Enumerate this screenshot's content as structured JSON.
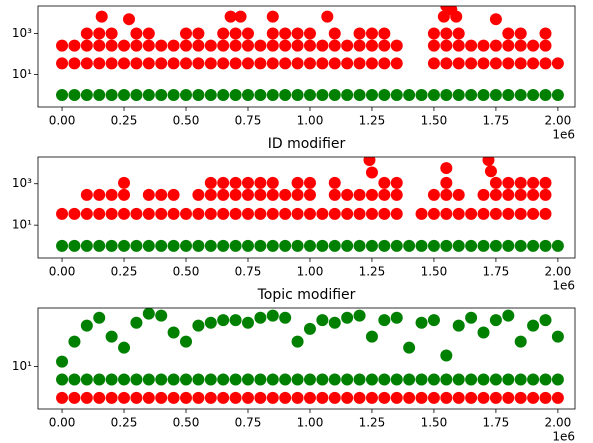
{
  "chart_data": [
    {
      "type": "scatter",
      "yscale": "log",
      "xlim": [
        -97000,
        2069000
      ],
      "ylim": [
        0.26,
        22000
      ],
      "xticks": [
        {
          "value": 0,
          "label": "0.00"
        },
        {
          "value": 250000,
          "label": "0.25"
        },
        {
          "value": 500000,
          "label": "0.50"
        },
        {
          "value": 750000,
          "label": "0.75"
        },
        {
          "value": 1000000,
          "label": "1.00"
        },
        {
          "value": 1250000,
          "label": "1.25"
        },
        {
          "value": 1500000,
          "label": "1.50"
        },
        {
          "value": 1750000,
          "label": "1.75"
        },
        {
          "value": 2000000,
          "label": "2.00"
        }
      ],
      "x_offset_label": "1e6",
      "yticks": [
        {
          "value": 10,
          "label": "10¹"
        },
        {
          "value": 1000,
          "label": "10³"
        }
      ],
      "series": [
        {
          "color": "#ff0000",
          "x": [
            0,
            50000,
            100000,
            150000,
            200000,
            250000,
            300000,
            350000,
            400000,
            450000,
            500000,
            550000,
            600000,
            650000,
            700000,
            750000,
            800000,
            850000,
            900000,
            950000,
            1000000,
            1050000,
            1100000,
            1150000,
            1200000,
            1250000,
            1300000,
            1350000,
            1500000,
            1550000,
            1600000,
            1650000,
            1700000,
            1750000,
            1800000,
            1850000,
            1900000,
            1950000,
            2000000
          ],
          "values": [
            35,
            35,
            35,
            35,
            35,
            35,
            35,
            35,
            35,
            35,
            35,
            35,
            35,
            35,
            35,
            35,
            35,
            35,
            35,
            35,
            35,
            35,
            35,
            35,
            35,
            35,
            35,
            35,
            35,
            35,
            35,
            35,
            35,
            35,
            35,
            35,
            35,
            35,
            35
          ]
        },
        {
          "color": "#ff0000",
          "x": [
            0,
            50000,
            100000,
            150000,
            200000,
            250000,
            300000,
            350000,
            400000,
            450000,
            500000,
            550000,
            600000,
            650000,
            700000,
            750000,
            800000,
            850000,
            900000,
            950000,
            1000000,
            1050000,
            1100000,
            1150000,
            1200000,
            1250000,
            1300000,
            1350000,
            1500000,
            1550000,
            1600000,
            1650000,
            1700000,
            1750000,
            1800000,
            1850000,
            1900000,
            1950000
          ],
          "values": [
            256,
            256,
            256,
            256,
            256,
            256,
            256,
            256,
            256,
            256,
            256,
            256,
            256,
            256,
            256,
            256,
            256,
            256,
            256,
            256,
            256,
            256,
            256,
            256,
            256,
            256,
            256,
            256,
            256,
            256,
            256,
            256,
            256,
            256,
            256,
            256,
            256,
            256
          ]
        },
        {
          "color": "#ff0000",
          "x": [
            100000,
            150000,
            200000,
            300000,
            350000,
            500000,
            550000,
            650000,
            700000,
            750000,
            850000,
            900000,
            950000,
            1000000,
            1100000,
            1200000,
            1250000,
            1300000,
            1500000,
            1550000,
            1600000,
            1800000,
            1850000,
            1950000
          ],
          "values": [
            1000,
            1000,
            1000,
            1000,
            1000,
            1000,
            1000,
            1000,
            1000,
            1000,
            1000,
            1000,
            1000,
            1000,
            1000,
            1000,
            1000,
            1000,
            1000,
            1000,
            1000,
            1000,
            1000,
            1000
          ]
        },
        {
          "color": "#ff0000",
          "x": [
            160000,
            270000,
            680000,
            720000,
            850000,
            1070000,
            1540000,
            1550000,
            1570000,
            1590000,
            1750000
          ],
          "values": [
            6700,
            5000,
            6700,
            6700,
            6700,
            6700,
            6700,
            22000,
            15000,
            6700,
            5000
          ]
        },
        {
          "color": "#008000",
          "x": [
            0,
            50000,
            100000,
            150000,
            200000,
            250000,
            300000,
            350000,
            400000,
            450000,
            500000,
            550000,
            600000,
            650000,
            700000,
            750000,
            800000,
            850000,
            900000,
            950000,
            1000000,
            1050000,
            1100000,
            1150000,
            1200000,
            1250000,
            1300000,
            1350000,
            1400000,
            1450000,
            1500000,
            1550000,
            1600000,
            1650000,
            1700000,
            1750000,
            1800000,
            1850000,
            1900000,
            1950000,
            2000000
          ],
          "values": [
            1,
            1,
            1,
            1,
            1,
            1,
            1,
            1,
            1,
            1,
            1,
            1,
            1,
            1,
            1,
            1,
            1,
            1,
            1,
            1,
            1,
            1,
            1,
            1,
            1,
            1,
            1,
            1,
            1,
            1,
            1,
            1,
            1,
            1,
            1,
            1,
            1,
            1,
            1,
            1,
            1
          ]
        }
      ]
    },
    {
      "type": "scatter",
      "title": "ID modifier",
      "yscale": "log",
      "xlim": [
        -97000,
        2069000
      ],
      "ylim": [
        0.26,
        19500
      ],
      "xticks": [
        {
          "value": 0,
          "label": "0.00"
        },
        {
          "value": 250000,
          "label": "0.25"
        },
        {
          "value": 500000,
          "label": "0.50"
        },
        {
          "value": 750000,
          "label": "0.75"
        },
        {
          "value": 1000000,
          "label": "1.00"
        },
        {
          "value": 1250000,
          "label": "1.25"
        },
        {
          "value": 1500000,
          "label": "1.50"
        },
        {
          "value": 1750000,
          "label": "1.75"
        },
        {
          "value": 2000000,
          "label": "2.00"
        }
      ],
      "x_offset_label": "1e6",
      "yticks": [
        {
          "value": 10,
          "label": "10¹"
        },
        {
          "value": 1000,
          "label": "10³"
        }
      ],
      "series": [
        {
          "color": "#ff0000",
          "x": [
            0,
            50000,
            100000,
            150000,
            200000,
            250000,
            300000,
            350000,
            400000,
            450000,
            500000,
            550000,
            600000,
            650000,
            700000,
            750000,
            800000,
            850000,
            900000,
            950000,
            1000000,
            1050000,
            1100000,
            1150000,
            1200000,
            1250000,
            1300000,
            1350000,
            1450000,
            1500000,
            1550000,
            1600000,
            1650000,
            1700000,
            1750000,
            1800000,
            1850000,
            1900000,
            1950000
          ],
          "values": [
            35,
            35,
            35,
            35,
            35,
            35,
            35,
            35,
            35,
            35,
            35,
            35,
            35,
            35,
            35,
            35,
            35,
            35,
            35,
            35,
            35,
            35,
            35,
            35,
            35,
            35,
            35,
            35,
            35,
            35,
            35,
            35,
            35,
            35,
            35,
            35,
            35,
            35,
            35
          ]
        },
        {
          "color": "#ff0000",
          "x": [
            100000,
            150000,
            200000,
            250000,
            350000,
            400000,
            450000,
            550000,
            600000,
            650000,
            700000,
            750000,
            800000,
            850000,
            900000,
            950000,
            1000000,
            1100000,
            1150000,
            1200000,
            1250000,
            1300000,
            1350000,
            1500000,
            1550000,
            1600000,
            1700000,
            1750000,
            1800000,
            1850000,
            1900000,
            1950000
          ],
          "values": [
            290,
            290,
            290,
            290,
            290,
            290,
            290,
            290,
            290,
            290,
            290,
            290,
            290,
            290,
            290,
            290,
            290,
            290,
            290,
            290,
            290,
            290,
            290,
            290,
            290,
            290,
            290,
            290,
            290,
            290,
            290,
            290
          ]
        },
        {
          "color": "#ff0000",
          "x": [
            250000,
            600000,
            650000,
            700000,
            750000,
            800000,
            850000,
            950000,
            1000000,
            1100000,
            1300000,
            1350000,
            1550000,
            1750000,
            1800000,
            1850000,
            1900000,
            1950000
          ],
          "values": [
            1100,
            1100,
            1100,
            1100,
            1100,
            1100,
            1100,
            1100,
            1100,
            1100,
            1100,
            1100,
            1100,
            1100,
            1100,
            1100,
            1100,
            1100
          ]
        },
        {
          "color": "#ff0000",
          "x": [
            1240000,
            1250000,
            1550000,
            1720000,
            1730000
          ],
          "values": [
            14000,
            3500,
            5700,
            14000,
            4000
          ]
        },
        {
          "color": "#008000",
          "x": [
            0,
            50000,
            100000,
            150000,
            200000,
            250000,
            300000,
            350000,
            400000,
            450000,
            500000,
            550000,
            600000,
            650000,
            700000,
            750000,
            800000,
            850000,
            900000,
            950000,
            1000000,
            1050000,
            1100000,
            1150000,
            1200000,
            1250000,
            1300000,
            1350000,
            1400000,
            1450000,
            1500000,
            1550000,
            1600000,
            1650000,
            1700000,
            1750000,
            1800000,
            1850000,
            1900000,
            1950000,
            2000000
          ],
          "values": [
            1,
            1,
            1,
            1,
            1,
            1,
            1,
            1,
            1,
            1,
            1,
            1,
            1,
            1,
            1,
            1,
            1,
            1,
            1,
            1,
            1,
            1,
            1,
            1,
            1,
            1,
            1,
            1,
            1,
            1,
            1,
            1,
            1,
            1,
            1,
            1,
            1,
            1,
            1,
            1,
            1
          ]
        }
      ]
    },
    {
      "type": "scatter",
      "title": "Topic modifier",
      "yscale": "log",
      "xlim": [
        -97000,
        2069000
      ],
      "ylim": [
        2.1,
        86
      ],
      "xticks": [
        {
          "value": 0,
          "label": "0.00"
        },
        {
          "value": 250000,
          "label": "0.25"
        },
        {
          "value": 500000,
          "label": "0.50"
        },
        {
          "value": 750000,
          "label": "0.75"
        },
        {
          "value": 1000000,
          "label": "1.00"
        },
        {
          "value": 1250000,
          "label": "1.25"
        },
        {
          "value": 1500000,
          "label": "1.50"
        },
        {
          "value": 1750000,
          "label": "1.75"
        },
        {
          "value": 2000000,
          "label": "2.00"
        }
      ],
      "x_offset_label": "1e6",
      "yticks": [
        {
          "value": 10,
          "label": "10¹"
        }
      ],
      "series": [
        {
          "color": "#ff0000",
          "x": [
            0,
            50000,
            100000,
            150000,
            200000,
            250000,
            300000,
            350000,
            400000,
            450000,
            500000,
            550000,
            600000,
            650000,
            700000,
            750000,
            800000,
            850000,
            900000,
            950000,
            1000000,
            1050000,
            1100000,
            1150000,
            1200000,
            1250000,
            1300000,
            1350000,
            1400000,
            1450000,
            1500000,
            1550000,
            1600000,
            1650000,
            1700000,
            1750000,
            1800000,
            1850000,
            1900000,
            1950000,
            2000000
          ],
          "values": [
            3.16,
            3.16,
            3.16,
            3.16,
            3.16,
            3.16,
            3.16,
            3.16,
            3.16,
            3.16,
            3.16,
            3.16,
            3.16,
            3.16,
            3.16,
            3.16,
            3.16,
            3.16,
            3.16,
            3.16,
            3.16,
            3.16,
            3.16,
            3.16,
            3.16,
            3.16,
            3.16,
            3.16,
            3.16,
            3.16,
            3.16,
            3.16,
            3.16,
            3.16,
            3.16,
            3.16,
            3.16,
            3.16,
            3.16,
            3.16,
            3.16
          ]
        },
        {
          "color": "#008000",
          "x": [
            0,
            50000,
            100000,
            150000,
            200000,
            250000,
            300000,
            350000,
            400000,
            450000,
            500000,
            550000,
            600000,
            650000,
            700000,
            750000,
            800000,
            850000,
            900000,
            950000,
            1000000,
            1050000,
            1100000,
            1150000,
            1200000,
            1250000,
            1300000,
            1350000,
            1400000,
            1450000,
            1500000,
            1550000,
            1600000,
            1650000,
            1700000,
            1750000,
            1800000,
            1850000,
            1900000,
            1950000,
            2000000
          ],
          "values": [
            6.2,
            6.2,
            6.2,
            6.2,
            6.2,
            6.2,
            6.2,
            6.2,
            6.2,
            6.2,
            6.2,
            6.2,
            6.2,
            6.2,
            6.2,
            6.2,
            6.2,
            6.2,
            6.2,
            6.2,
            6.2,
            6.2,
            6.2,
            6.2,
            6.2,
            6.2,
            6.2,
            6.2,
            6.2,
            6.2,
            6.2,
            6.2,
            6.2,
            6.2,
            6.2,
            6.2,
            6.2,
            6.2,
            6.2,
            6.2,
            6.2
          ]
        },
        {
          "color": "#008000",
          "x": [
            0,
            50000,
            100000,
            150000,
            200000,
            250000,
            300000,
            350000,
            400000,
            450000,
            500000,
            550000,
            600000,
            650000,
            700000,
            750000,
            800000,
            850000,
            900000,
            950000,
            1000000,
            1050000,
            1100000,
            1150000,
            1200000,
            1250000,
            1300000,
            1350000,
            1400000,
            1450000,
            1500000,
            1550000,
            1600000,
            1650000,
            1700000,
            1750000,
            1800000,
            1850000,
            1900000,
            1950000,
            2000000
          ],
          "values": [
            12,
            25,
            45,
            60,
            30,
            20,
            50,
            70,
            65,
            35,
            25,
            45,
            50,
            55,
            55,
            50,
            60,
            65,
            60,
            25,
            40,
            55,
            50,
            60,
            65,
            30,
            55,
            60,
            20,
            50,
            55,
            15,
            45,
            60,
            35,
            55,
            65,
            25,
            45,
            55,
            30
          ]
        }
      ]
    }
  ]
}
